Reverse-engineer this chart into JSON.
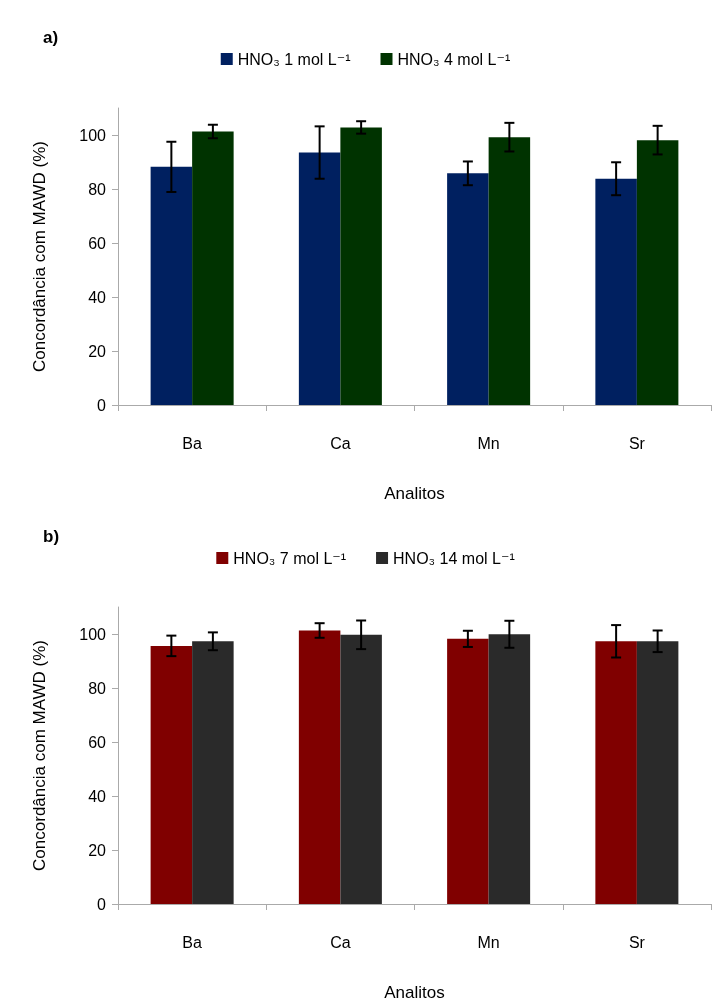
{
  "chart_data": [
    {
      "type": "bar",
      "title": "a)",
      "xlabel": "Analitos",
      "ylabel": "Concordância com MAWD (%)",
      "categories": [
        "Ba",
        "Ca",
        "Mn",
        "Sr"
      ],
      "ylim": [
        0,
        110
      ],
      "yticks": [
        0,
        20,
        40,
        60,
        80,
        100
      ],
      "grid": false,
      "legend": "top",
      "series": [
        {
          "name": "HNO₃ 1 mol L⁻¹",
          "color": "#002060",
          "values": [
            88.2,
            93.5,
            85.8,
            83.8
          ],
          "errors": [
            9.3,
            9.7,
            4.4,
            6.1
          ]
        },
        {
          "name": "HNO₃ 4 mol L⁻¹",
          "color": "#003300",
          "values": [
            101.3,
            102.8,
            99.2,
            98.1
          ],
          "errors": [
            2.5,
            2.3,
            5.3,
            5.3
          ]
        }
      ]
    },
    {
      "type": "bar",
      "title": "b)",
      "xlabel": "Analitos",
      "ylabel": "Concordância com MAWD (%)",
      "categories": [
        "Ba",
        "Ca",
        "Mn",
        "Sr"
      ],
      "ylim": [
        0,
        110
      ],
      "yticks": [
        0,
        20,
        40,
        60,
        80,
        100
      ],
      "grid": false,
      "legend": "top",
      "series": [
        {
          "name": "HNO₃ 7 mol L⁻¹",
          "color": "#800000",
          "values": [
            95.6,
            101.3,
            98.2,
            97.3
          ],
          "errors": [
            3.8,
            2.7,
            3.0,
            6.0
          ]
        },
        {
          "name": "HNO₃ 14 mol L⁻¹",
          "color": "#2a2a2a",
          "values": [
            97.3,
            99.7,
            99.9,
            97.3
          ],
          "errors": [
            3.3,
            5.3,
            5.0,
            4.0
          ]
        }
      ]
    }
  ]
}
